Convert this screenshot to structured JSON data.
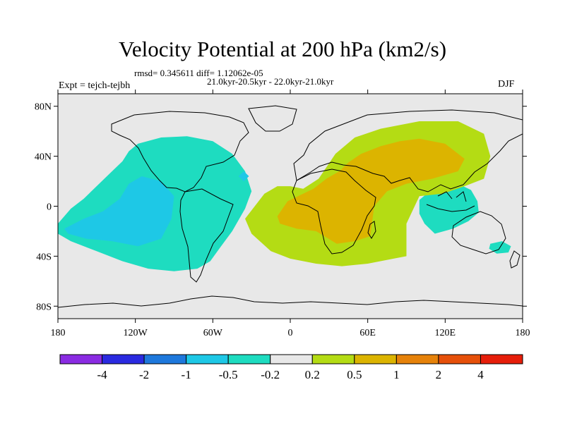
{
  "chart_data": {
    "type": "heatmap",
    "title": "Velocity Potential at 200 hPa (km2/s)",
    "subtitle_stats": "rmsd= 0.345611 diff= 1.12062e-05",
    "subtitle_period": "21.0kyr-20.5kyr - 22.0kyr-21.0kyr",
    "left_label": "Expt = tejch-tejbh",
    "right_label": "DJF",
    "xlim": [
      -180,
      180
    ],
    "ylim": [
      -90,
      90
    ],
    "x_ticks": [
      {
        "value": -180,
        "label": "180"
      },
      {
        "value": -120,
        "label": "120W"
      },
      {
        "value": -60,
        "label": "60W"
      },
      {
        "value": 0,
        "label": "0"
      },
      {
        "value": 60,
        "label": "60E"
      },
      {
        "value": 120,
        "label": "120E"
      },
      {
        "value": 180,
        "label": "180"
      }
    ],
    "y_ticks": [
      {
        "value": 80,
        "label": "80N"
      },
      {
        "value": 40,
        "label": "40N"
      },
      {
        "value": 0,
        "label": "0"
      },
      {
        "value": -40,
        "label": "40S"
      },
      {
        "value": -80,
        "label": "80S"
      }
    ],
    "colorbar": {
      "colors": [
        "#8a2be2",
        "#2a2ae0",
        "#1e78dc",
        "#1ec8e6",
        "#1edcc0",
        "#e8e8e8",
        "#b4dc14",
        "#dcb400",
        "#e6820a",
        "#e6500a",
        "#e61e0a"
      ],
      "labels": [
        "-4",
        "-2",
        "-1",
        "-0.5",
        "-0.2",
        "0.2",
        "0.5",
        "1",
        "2",
        "4"
      ]
    },
    "regions": [
      {
        "level": "-0.2",
        "color": "#1edcc0",
        "points": [
          [
            -180,
            -14
          ],
          [
            -170,
            -2
          ],
          [
            -160,
            6
          ],
          [
            -150,
            16
          ],
          [
            -140,
            26
          ],
          [
            -130,
            36
          ],
          [
            -125,
            44
          ],
          [
            -118,
            50
          ],
          [
            -100,
            55
          ],
          [
            -80,
            56
          ],
          [
            -60,
            52
          ],
          [
            -45,
            42
          ],
          [
            -35,
            28
          ],
          [
            -30,
            12
          ],
          [
            -35,
            -2
          ],
          [
            -45,
            -20
          ],
          [
            -55,
            -34
          ],
          [
            -62,
            -44
          ],
          [
            -72,
            -50
          ],
          [
            -90,
            -52
          ],
          [
            -110,
            -50
          ],
          [
            -130,
            -44
          ],
          [
            -150,
            -36
          ],
          [
            -170,
            -28
          ],
          [
            -180,
            -22
          ]
        ]
      },
      {
        "level": "-0.2",
        "color": "#1edcc0",
        "points": [
          [
            100,
            5
          ],
          [
            108,
            12
          ],
          [
            118,
            17
          ],
          [
            130,
            18
          ],
          [
            140,
            13
          ],
          [
            145,
            4
          ],
          [
            146,
            -5
          ],
          [
            138,
            -12
          ],
          [
            126,
            -18
          ],
          [
            112,
            -22
          ],
          [
            104,
            -14
          ],
          [
            100,
            -6
          ]
        ]
      },
      {
        "level": "-0.2",
        "color": "#1edcc0",
        "points": [
          [
            155,
            -30
          ],
          [
            164,
            -28
          ],
          [
            171,
            -32
          ],
          [
            169,
            -37
          ],
          [
            160,
            -38
          ],
          [
            154,
            -34
          ]
        ]
      },
      {
        "level": "-0.5",
        "color": "#1ec8e6",
        "points": [
          [
            -175,
            -18
          ],
          [
            -160,
            -10
          ],
          [
            -145,
            -4
          ],
          [
            -132,
            6
          ],
          [
            -125,
            18
          ],
          [
            -115,
            24
          ],
          [
            -100,
            20
          ],
          [
            -90,
            8
          ],
          [
            -92,
            -10
          ],
          [
            -100,
            -26
          ],
          [
            -118,
            -32
          ],
          [
            -138,
            -28
          ],
          [
            -158,
            -26
          ],
          [
            -172,
            -22
          ]
        ]
      },
      {
        "level": "-0.5",
        "color": "#1ec8e6",
        "points": [
          [
            -40,
            24
          ],
          [
            -36,
            28
          ],
          [
            -32,
            24
          ],
          [
            -36,
            20
          ]
        ]
      },
      {
        "level": "0.2",
        "color": "#b4dc14",
        "points": [
          [
            -35,
            -10
          ],
          [
            -20,
            10
          ],
          [
            -10,
            16
          ],
          [
            0,
            16
          ],
          [
            10,
            14
          ],
          [
            22,
            22
          ],
          [
            35,
            42
          ],
          [
            50,
            55
          ],
          [
            70,
            62
          ],
          [
            100,
            68
          ],
          [
            130,
            68
          ],
          [
            150,
            58
          ],
          [
            155,
            40
          ],
          [
            150,
            22
          ],
          [
            135,
            16
          ],
          [
            118,
            10
          ],
          [
            100,
            8
          ],
          [
            90,
            -14
          ],
          [
            90,
            -40
          ],
          [
            80,
            -42
          ],
          [
            60,
            -46
          ],
          [
            40,
            -48
          ],
          [
            20,
            -46
          ],
          [
            0,
            -42
          ],
          [
            -15,
            -36
          ],
          [
            -30,
            -22
          ]
        ]
      },
      {
        "level": "0.5",
        "color": "#dcb400",
        "points": [
          [
            -10,
            -8
          ],
          [
            -2,
            4
          ],
          [
            10,
            10
          ],
          [
            18,
            14
          ],
          [
            28,
            22
          ],
          [
            38,
            28
          ],
          [
            45,
            35
          ],
          [
            55,
            42
          ],
          [
            70,
            48
          ],
          [
            85,
            52
          ],
          [
            100,
            54
          ],
          [
            120,
            50
          ],
          [
            135,
            38
          ],
          [
            130,
            28
          ],
          [
            110,
            22
          ],
          [
            90,
            18
          ],
          [
            75,
            12
          ],
          [
            65,
            0
          ],
          [
            62,
            -24
          ],
          [
            50,
            -28
          ],
          [
            36,
            -30
          ],
          [
            20,
            -20
          ],
          [
            5,
            -18
          ],
          [
            -8,
            -14
          ]
        ]
      }
    ]
  }
}
